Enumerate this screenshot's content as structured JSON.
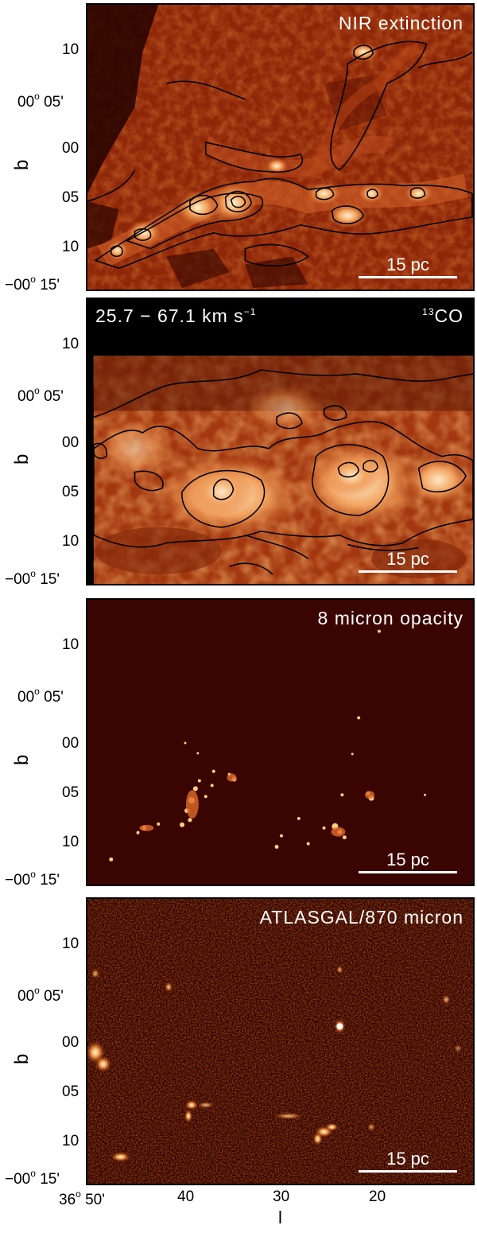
{
  "panels": [
    {
      "title": "NIR extinction",
      "scale_label": "15 pc"
    },
    {
      "title_left": "25.7 − 67.1 km s",
      "title_left_sup": "−1",
      "title_right_sup": "13",
      "title_right": "CO",
      "scale_label": "15 pc"
    },
    {
      "title": "8 micron opacity",
      "scale_label": "15 pc"
    },
    {
      "title": "ATLASGAL/870 micron",
      "scale_label": "15 pc"
    }
  ],
  "axes": {
    "ylabel": "b",
    "xlabel": "l",
    "yticks": {
      "t10": "10",
      "t05_deg": "00",
      "t05_sup": "o",
      "t05_min": "05'",
      "t00": "00",
      "tm05": "05",
      "tm10": "10",
      "t15_deg": "−00",
      "t15_sup": "o",
      "t15_min": "15'"
    },
    "xticks": {
      "t50_deg": "36",
      "t50_sup": "o",
      "t50_min": "50'",
      "t40": "40",
      "t30": "30",
      "t20": "20"
    }
  },
  "colors": {
    "dark": "#3a0500",
    "mid": "#a8300c",
    "bright": "#f0a05a",
    "hot": "#fff4d8"
  }
}
